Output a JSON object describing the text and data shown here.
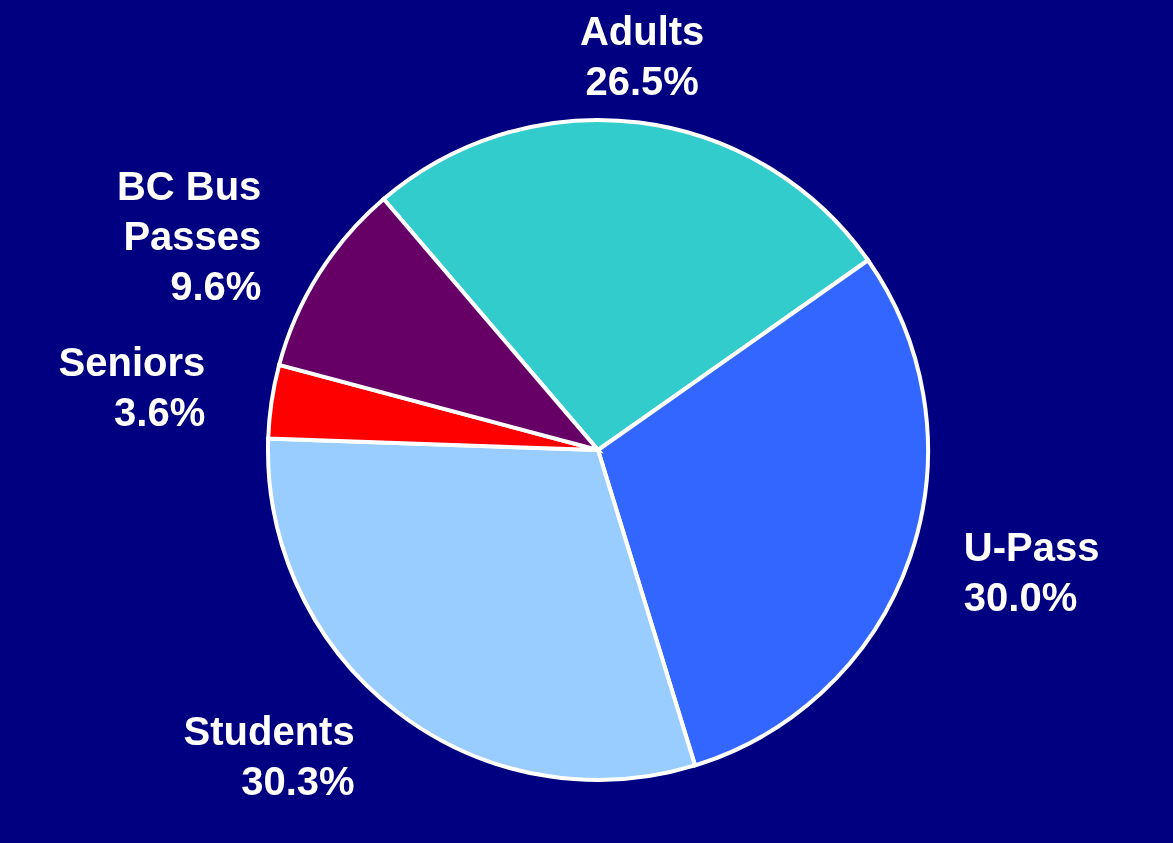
{
  "chart_data": {
    "type": "pie",
    "categories": [
      "Adults",
      "U-Pass",
      "Students",
      "Seniors",
      "BC Bus Passes"
    ],
    "values": [
      26.5,
      30.0,
      30.3,
      3.6,
      9.6
    ],
    "colors": [
      "#33cccc",
      "#3366ff",
      "#99ccff",
      "#ff0000",
      "#660066"
    ],
    "value_labels": [
      "26.5%",
      "30.0%",
      "30.3%",
      "3.6%",
      "9.6%"
    ]
  }
}
